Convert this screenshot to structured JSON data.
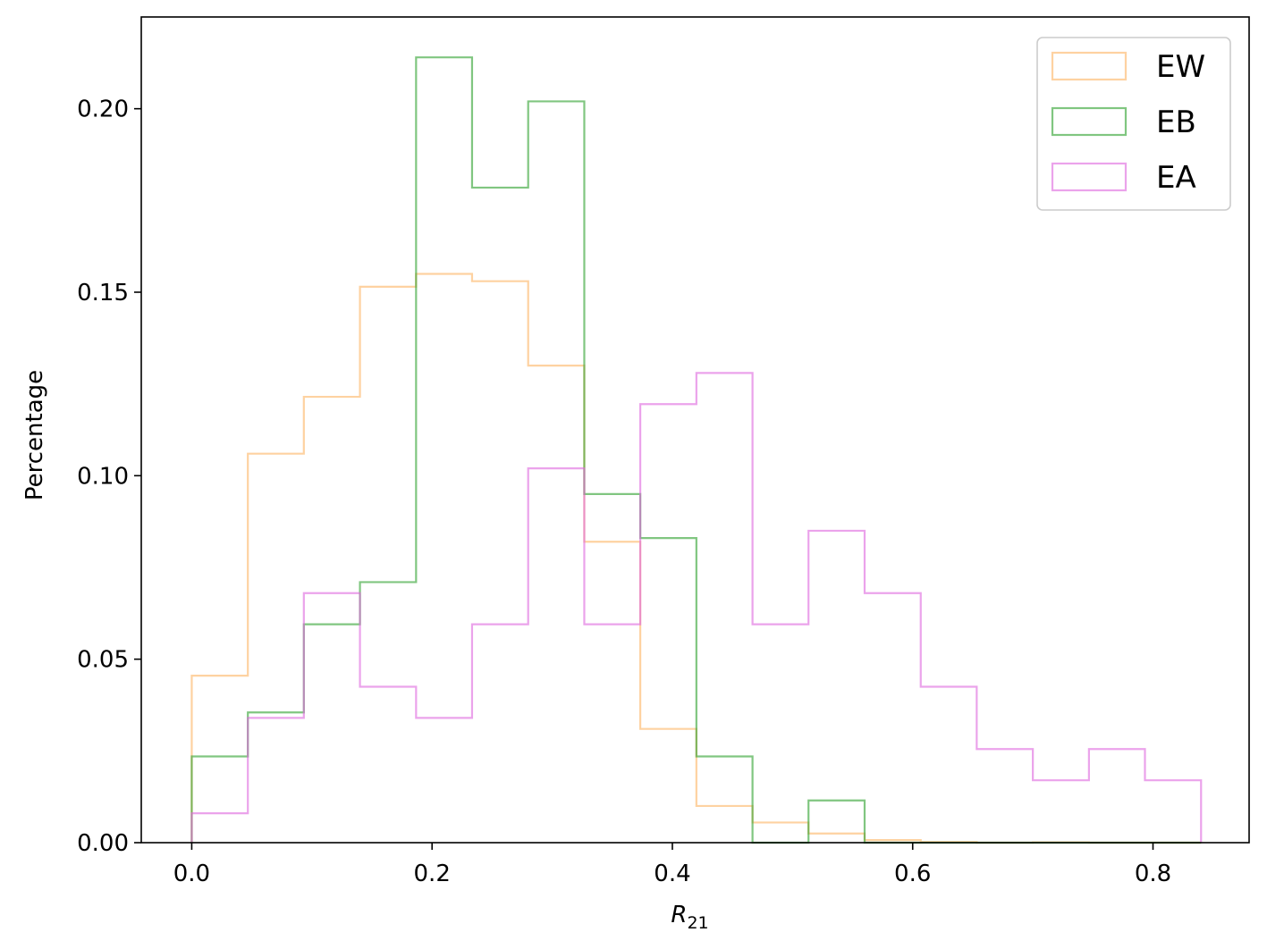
{
  "chart_data": {
    "type": "histogram-step",
    "xlabel": "R",
    "xlabel_subscript": "21",
    "ylabel": "Percentage",
    "xlim": [
      -0.042,
      0.88
    ],
    "ylim": [
      0,
      0.225
    ],
    "x_ticks": [
      0.0,
      0.2,
      0.4,
      0.6,
      0.8
    ],
    "x_tick_labels": [
      "0.0",
      "0.2",
      "0.4",
      "0.6",
      "0.8"
    ],
    "y_ticks": [
      0.0,
      0.05,
      0.1,
      0.15,
      0.2
    ],
    "y_tick_labels": [
      "0.00",
      "0.05",
      "0.10",
      "0.15",
      "0.20"
    ],
    "grid": false,
    "legend_position": "top-right",
    "bin_edges": [
      0.0,
      0.0467,
      0.0933,
      0.14,
      0.1867,
      0.2333,
      0.28,
      0.3267,
      0.3733,
      0.42,
      0.4667,
      0.5133,
      0.56,
      0.6067,
      0.6533,
      0.7,
      0.7467,
      0.7933,
      0.84
    ],
    "series": [
      {
        "name": "EW",
        "color": "#fdb462",
        "values": [
          0.0455,
          0.106,
          0.1215,
          0.1515,
          0.155,
          0.153,
          0.13,
          0.082,
          0.031,
          0.01,
          0.0055,
          0.0025,
          0.0007,
          0.0002,
          0.0,
          0.0001,
          0.0,
          0.0
        ]
      },
      {
        "name": "EB",
        "color": "#2ca02c",
        "values": [
          0.0235,
          0.0355,
          0.0595,
          0.071,
          0.214,
          0.1785,
          0.202,
          0.095,
          0.083,
          0.0235,
          0.0,
          0.0115,
          0.0,
          0.0,
          0.0,
          0.0,
          0.0,
          0.0
        ]
      },
      {
        "name": "EA",
        "color": "#dd66dd",
        "values": [
          0.008,
          0.034,
          0.068,
          0.0425,
          0.034,
          0.0595,
          0.102,
          0.0595,
          0.1195,
          0.128,
          0.0595,
          0.085,
          0.068,
          0.0425,
          0.0255,
          0.017,
          0.0255,
          0.017
        ]
      }
    ]
  }
}
